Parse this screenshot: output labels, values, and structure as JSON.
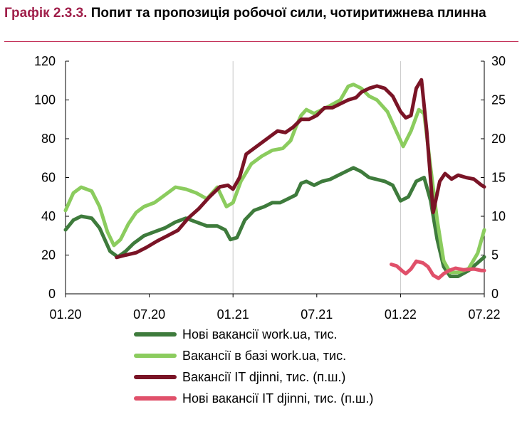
{
  "header": {
    "title_number": "Графік 2.3.3.",
    "title_text": "Попит та пропозиція робочої сили, чотиритижнева плинна"
  },
  "chart_data": {
    "type": "line",
    "x_ticks": [
      "01.20",
      "07.20",
      "01.21",
      "07.21",
      "01.22",
      "07.22"
    ],
    "x_range": [
      0,
      32
    ],
    "y_left": {
      "range": [
        0,
        120
      ],
      "ticks": [
        "0",
        "20",
        "40",
        "60",
        "80",
        "100",
        "120"
      ]
    },
    "y_right": {
      "range": [
        0,
        30
      ],
      "ticks": [
        "0",
        "5",
        "10",
        "15",
        "20",
        "25",
        "30"
      ]
    },
    "vertical_gridlines_at": [
      "01.21",
      "01.22"
    ],
    "legend_position": "bottom",
    "series": [
      {
        "name": "Нові вакансії work.ua, тис.",
        "axis": "left",
        "color": "#3e7b3c",
        "points": [
          [
            0,
            33
          ],
          [
            0.6,
            38
          ],
          [
            1.2,
            40
          ],
          [
            2,
            39
          ],
          [
            2.6,
            34
          ],
          [
            3.4,
            22
          ],
          [
            4,
            19
          ],
          [
            4.6,
            22
          ],
          [
            5.2,
            26
          ],
          [
            6,
            30
          ],
          [
            6.8,
            32
          ],
          [
            7.6,
            34
          ],
          [
            8.4,
            37
          ],
          [
            9.2,
            39
          ],
          [
            10,
            37
          ],
          [
            10.8,
            35
          ],
          [
            11.6,
            35
          ],
          [
            12.2,
            33
          ],
          [
            12.6,
            28
          ],
          [
            13.1,
            29
          ],
          [
            13.7,
            38
          ],
          [
            14.4,
            43
          ],
          [
            15.2,
            45
          ],
          [
            15.8,
            47
          ],
          [
            16.4,
            47
          ],
          [
            17,
            49
          ],
          [
            17.6,
            51
          ],
          [
            18,
            57
          ],
          [
            18.4,
            58
          ],
          [
            19,
            56
          ],
          [
            19.6,
            58
          ],
          [
            20.2,
            59
          ],
          [
            20.8,
            61
          ],
          [
            21.4,
            63
          ],
          [
            22,
            65
          ],
          [
            22.6,
            63
          ],
          [
            23.2,
            60
          ],
          [
            23.8,
            59
          ],
          [
            24.4,
            58
          ],
          [
            25,
            56
          ],
          [
            25.6,
            48
          ],
          [
            26.2,
            50
          ],
          [
            26.8,
            58
          ],
          [
            27.4,
            60
          ],
          [
            27.9,
            48
          ],
          [
            28.4,
            28
          ],
          [
            28.9,
            14
          ],
          [
            29.4,
            9
          ],
          [
            30,
            9
          ],
          [
            30.8,
            12
          ],
          [
            31.5,
            16
          ],
          [
            32,
            19
          ]
        ]
      },
      {
        "name": "Вакансії в базі work.ua, тис.",
        "axis": "left",
        "color": "#8bcc5e",
        "points": [
          [
            0,
            43
          ],
          [
            0.6,
            52
          ],
          [
            1.2,
            55
          ],
          [
            2,
            53
          ],
          [
            2.6,
            45
          ],
          [
            3.2,
            32
          ],
          [
            3.7,
            25
          ],
          [
            4.2,
            28
          ],
          [
            4.8,
            36
          ],
          [
            5.4,
            42
          ],
          [
            6,
            45
          ],
          [
            6.8,
            47
          ],
          [
            7.6,
            51
          ],
          [
            8.4,
            55
          ],
          [
            9.2,
            54
          ],
          [
            10,
            52
          ],
          [
            10.8,
            49
          ],
          [
            11.6,
            55
          ],
          [
            12.3,
            45
          ],
          [
            12.8,
            47
          ],
          [
            13.4,
            58
          ],
          [
            14.2,
            67
          ],
          [
            15,
            71
          ],
          [
            15.8,
            74
          ],
          [
            16.6,
            75
          ],
          [
            17.2,
            79
          ],
          [
            17.6,
            86
          ],
          [
            18,
            92
          ],
          [
            18.4,
            95
          ],
          [
            19,
            93
          ],
          [
            19.6,
            95
          ],
          [
            20.2,
            97
          ],
          [
            21,
            100
          ],
          [
            21.6,
            107
          ],
          [
            22,
            108
          ],
          [
            22.6,
            106
          ],
          [
            23.2,
            102
          ],
          [
            23.8,
            100
          ],
          [
            24.6,
            94
          ],
          [
            25.4,
            82
          ],
          [
            25.8,
            76
          ],
          [
            26.4,
            84
          ],
          [
            27,
            95
          ],
          [
            27.4,
            93
          ],
          [
            27.9,
            65
          ],
          [
            28.4,
            38
          ],
          [
            28.9,
            17
          ],
          [
            29.4,
            11
          ],
          [
            30,
            11
          ],
          [
            30.8,
            13
          ],
          [
            31.5,
            21
          ],
          [
            32,
            33
          ]
        ]
      },
      {
        "name": "Вакансії IT djinni, тис. (п.ш.)",
        "axis": "right",
        "color": "#7a1426",
        "points": [
          [
            3.9,
            4.7
          ],
          [
            4.6,
            5.0
          ],
          [
            5.4,
            5.3
          ],
          [
            6.2,
            6.0
          ],
          [
            7,
            6.8
          ],
          [
            7.8,
            7.5
          ],
          [
            8.6,
            8.2
          ],
          [
            9.4,
            9.8
          ],
          [
            10.2,
            11.0
          ],
          [
            11,
            12.5
          ],
          [
            11.8,
            13.8
          ],
          [
            12.4,
            14.0
          ],
          [
            12.8,
            13.5
          ],
          [
            13.3,
            15.0
          ],
          [
            13.8,
            18.0
          ],
          [
            14.6,
            19.0
          ],
          [
            15.4,
            20.0
          ],
          [
            16.2,
            21.0
          ],
          [
            16.8,
            20.8
          ],
          [
            17.4,
            21.5
          ],
          [
            18,
            22.5
          ],
          [
            18.6,
            22.5
          ],
          [
            19.2,
            23.0
          ],
          [
            19.8,
            24.0
          ],
          [
            20.4,
            24.0
          ],
          [
            21,
            24.5
          ],
          [
            21.6,
            25.0
          ],
          [
            22.2,
            25.3
          ],
          [
            22.6,
            26.0
          ],
          [
            23.2,
            26.5
          ],
          [
            23.8,
            26.8
          ],
          [
            24.4,
            26.5
          ],
          [
            25,
            25.5
          ],
          [
            25.6,
            23.5
          ],
          [
            26,
            22.7
          ],
          [
            26.4,
            23.0
          ],
          [
            26.8,
            26.5
          ],
          [
            27.2,
            27.6
          ],
          [
            27.6,
            21.0
          ],
          [
            28.1,
            10.5
          ],
          [
            28.6,
            14.5
          ],
          [
            29,
            15.5
          ],
          [
            29.5,
            14.8
          ],
          [
            30,
            15.3
          ],
          [
            30.6,
            15.0
          ],
          [
            31.2,
            14.8
          ],
          [
            31.8,
            14.0
          ],
          [
            32,
            13.8
          ]
        ]
      },
      {
        "name": "Нові вакансії IT djinni, тис. (п.ш.)",
        "axis": "right",
        "color": "#e0506a",
        "points": [
          [
            24.9,
            3.8
          ],
          [
            25.3,
            3.6
          ],
          [
            25.7,
            3.0
          ],
          [
            26,
            2.6
          ],
          [
            26.4,
            3.2
          ],
          [
            26.8,
            4.2
          ],
          [
            27.3,
            4.0
          ],
          [
            27.7,
            3.5
          ],
          [
            28.1,
            2.4
          ],
          [
            28.5,
            2.0
          ],
          [
            28.9,
            2.6
          ],
          [
            29.3,
            3.0
          ],
          [
            29.8,
            3.3
          ],
          [
            30.4,
            3.1
          ],
          [
            31.2,
            3.2
          ],
          [
            31.8,
            3.0
          ],
          [
            32,
            3.0
          ]
        ]
      }
    ]
  }
}
